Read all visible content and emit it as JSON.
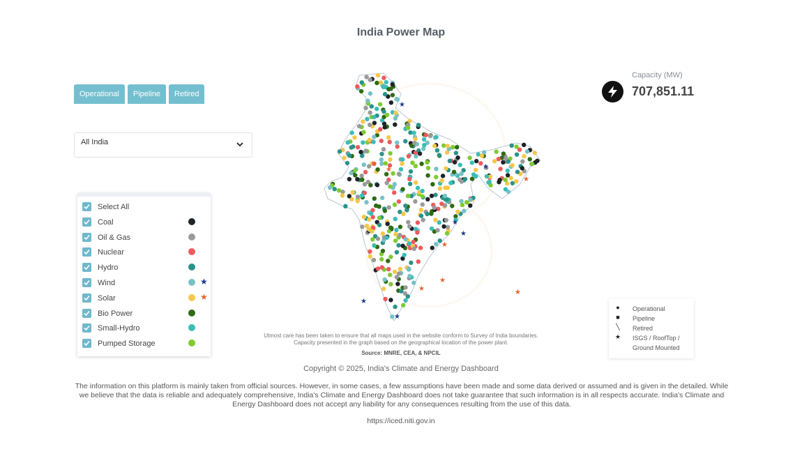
{
  "page": {
    "title": "India Power Map"
  },
  "tabs": [
    {
      "label": "Operational"
    },
    {
      "label": "Pipeline"
    },
    {
      "label": "Retired"
    }
  ],
  "region_select": {
    "value": "All India"
  },
  "legend": {
    "items": [
      {
        "label": "Select All",
        "checked": true
      },
      {
        "label": "Coal",
        "checked": true,
        "color": "#1f2328"
      },
      {
        "label": "Oil & Gas",
        "checked": true,
        "color": "#9a9a9a"
      },
      {
        "label": "Nuclear",
        "checked": true,
        "color": "#ec5a5e"
      },
      {
        "label": "Hydro",
        "checked": true,
        "color": "#2a9389"
      },
      {
        "label": "Wind",
        "checked": true,
        "color": "#77c1c8",
        "star_color": "#1e3a8a"
      },
      {
        "label": "Solar",
        "checked": true,
        "color": "#f7c74b",
        "star_color": "#e8622a"
      },
      {
        "label": "Bio Power",
        "checked": true,
        "color": "#2f6b14"
      },
      {
        "label": "Small-Hydro",
        "checked": true,
        "color": "#3bbdb7"
      },
      {
        "label": "Pumped Storage",
        "checked": true,
        "color": "#7ecb31"
      }
    ]
  },
  "capacity": {
    "label": "Capacity (MW)",
    "value": "707,851.11",
    "icon": "lightning-bolt-icon"
  },
  "map": {
    "note_line1": "Utmost care has been taken to ensure that all maps used in the website conform to Survey of India boundaries.",
    "note_line2": "Capacity presented in the graph based on the geographical location of the power plant.",
    "source": "Source: MNRE, CEA, & NPCIL"
  },
  "symbol_legend": {
    "items": [
      {
        "symbol": "circle-icon",
        "label": "Operational"
      },
      {
        "symbol": "square-icon",
        "label": "Pipeline"
      },
      {
        "symbol": "slash-icon",
        "label": "Retired"
      },
      {
        "symbol": "star-icon",
        "label": "ISGS / RoofTop /",
        "label2": "Ground Mounted"
      }
    ]
  },
  "footer": {
    "copyright": "Copyright © 2025, India's Climate and Energy Dashboard",
    "disclaimer": "The information on this platform is mainly taken from official sources. However, in some cases, a few assumptions have been made and some data derived or assumed and is given in the detailed. While we believe that the data is reliable and adequately comprehensive, India's Climate and Energy Dashboard does not take guarantee that such information is in all respects accurate. India's Climate and Energy Dashboard does not accept any liability for any consequences resulting from the use of this data.",
    "url": "https://iced.niti.gov.in"
  }
}
